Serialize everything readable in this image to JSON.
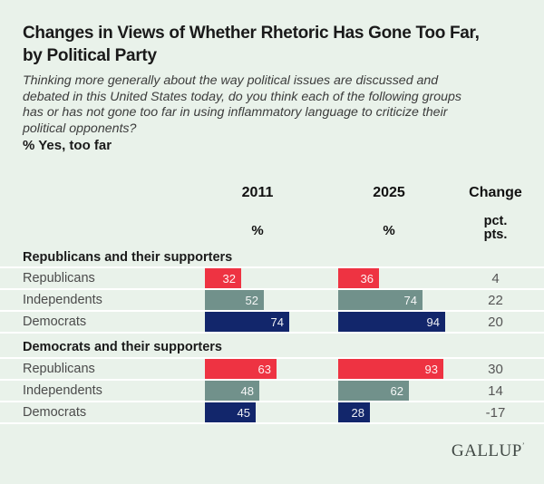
{
  "page": {
    "background_color": "#e9f2ea",
    "separator_color": "#ffffff"
  },
  "header": {
    "title_line1": "Changes in Views of Whether Rhetoric Has Gone Too Far,",
    "title_line2": "by Political Party",
    "subtitle_lines": [
      "Thinking more generally about the way political issues are discussed and",
      "debated in this United States today, do you think each of the following groups",
      "has or has not gone too far in using inflammatory language to criticize their",
      "political opponents?"
    ],
    "measure_label": "% Yes, too far"
  },
  "columns": {
    "year1": "2011",
    "year2": "2025",
    "change": "Change",
    "year1_unit": "%",
    "year2_unit": "%",
    "change_unit_line1": "pct.",
    "change_unit_line2": "pts."
  },
  "colors": {
    "republicans": "#ee3342",
    "independents": "#71918b",
    "democrats": "#12266b"
  },
  "chart_data": {
    "type": "bar",
    "title": "Changes in Views of Whether Rhetoric Has Gone Too Far, by Political Party",
    "question": "Thinking more generally about the way political issues are discussed and debated in this United States today, do you think each of the following groups has or has not gone too far in using inflammatory language to criticize their political opponents?",
    "measure": "% Yes, too far",
    "columns": [
      "2011",
      "2025",
      "Change (pct. pts.)"
    ],
    "xlim": [
      0,
      100
    ],
    "groups": [
      {
        "group": "Republicans and their supporters",
        "rows": [
          {
            "category": "Republicans",
            "color_key": "republicans",
            "v2011": 32,
            "v2025": 36,
            "change": "4"
          },
          {
            "category": "Independents",
            "color_key": "independents",
            "v2011": 52,
            "v2025": 74,
            "change": "22"
          },
          {
            "category": "Democrats",
            "color_key": "democrats",
            "v2011": 74,
            "v2025": 94,
            "change": "20"
          }
        ]
      },
      {
        "group": "Democrats and their supporters",
        "rows": [
          {
            "category": "Republicans",
            "color_key": "republicans",
            "v2011": 63,
            "v2025": 93,
            "change": "30"
          },
          {
            "category": "Independents",
            "color_key": "independents",
            "v2011": 48,
            "v2025": 62,
            "change": "14"
          },
          {
            "category": "Democrats",
            "color_key": "democrats",
            "v2011": 45,
            "v2025": 28,
            "change": "-17"
          }
        ]
      }
    ]
  },
  "footer": {
    "logo_text": "GALLUP"
  }
}
